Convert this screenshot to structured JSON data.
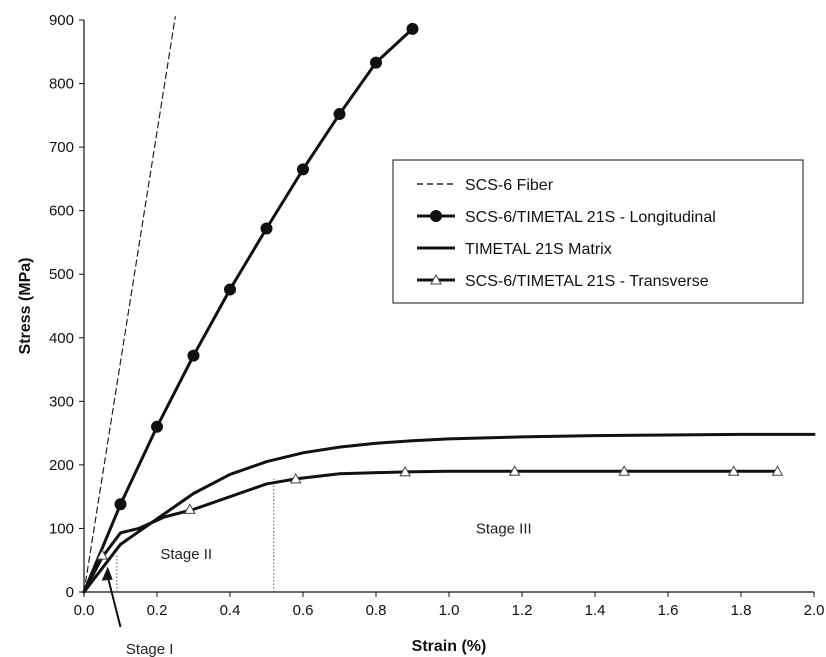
{
  "chart_data": {
    "type": "line",
    "xlabel": "Strain (%)",
    "ylabel": "Stress (MPa)",
    "xlim": [
      0,
      2.0
    ],
    "ylim": [
      0,
      900
    ],
    "xticks": [
      "0.0",
      "0.2",
      "0.4",
      "0.6",
      "0.8",
      "1.0",
      "1.2",
      "1.4",
      "1.6",
      "1.8",
      "2.0"
    ],
    "yticks": [
      "0",
      "100",
      "200",
      "300",
      "400",
      "500",
      "600",
      "700",
      "800",
      "900"
    ],
    "grid": false,
    "legend_position": "right",
    "series": [
      {
        "name": "SCS-6 Fiber",
        "style": "dashed",
        "color": "#222222",
        "x": [
          0,
          0.25
        ],
        "y": [
          0,
          905
        ]
      },
      {
        "name": "SCS-6/TIMETAL 21S - Longitudinal",
        "style": "solid",
        "marker": "circle",
        "color": "#111111",
        "x": [
          0,
          0.1,
          0.2,
          0.3,
          0.4,
          0.5,
          0.6,
          0.7,
          0.8,
          0.9
        ],
        "y": [
          0,
          138,
          260,
          372,
          476,
          572,
          665,
          752,
          833,
          886
        ],
        "marker_x": [
          0.1,
          0.2,
          0.3,
          0.4,
          0.5,
          0.6,
          0.7,
          0.8,
          0.9
        ],
        "marker_y": [
          138,
          260,
          372,
          476,
          572,
          665,
          752,
          833,
          886
        ]
      },
      {
        "name": "TIMETAL 21S Matrix",
        "style": "solid",
        "color": "#111111",
        "x": [
          0,
          0.1,
          0.2,
          0.3,
          0.4,
          0.5,
          0.6,
          0.7,
          0.8,
          0.9,
          1.0,
          1.2,
          1.4,
          1.6,
          1.8,
          2.0
        ],
        "y": [
          0,
          75,
          115,
          155,
          185,
          205,
          219,
          228,
          234,
          238,
          241,
          244,
          246,
          247,
          248,
          248
        ]
      },
      {
        "name": "SCS-6/TIMETAL 21S - Transverse",
        "style": "solid",
        "marker": "triangle",
        "color": "#111111",
        "x": [
          0,
          0.05,
          0.1,
          0.15,
          0.22,
          0.3,
          0.4,
          0.5,
          0.58,
          0.7,
          0.88,
          1.0,
          1.18,
          1.4,
          1.6,
          1.78,
          1.9
        ],
        "y": [
          0,
          55,
          93,
          100,
          118,
          130,
          150,
          170,
          178,
          186,
          189,
          190,
          190,
          190,
          190,
          190,
          190
        ],
        "marker_x": [
          0.05,
          0.29,
          0.58,
          0.88,
          1.18,
          1.48,
          1.78,
          1.9
        ],
        "marker_y": [
          58,
          130,
          178,
          189,
          190,
          190,
          190,
          190
        ]
      }
    ],
    "annotations": [
      {
        "text": "Stage I",
        "x": 0.18,
        "y": -90
      },
      {
        "text": "Stage II",
        "x": 0.28,
        "y": 60
      },
      {
        "text": "Stage III",
        "x": 1.15,
        "y": 100
      }
    ],
    "reference_lines": [
      {
        "x": 0.09,
        "y_top": 58
      },
      {
        "x": 0.52,
        "y_top": 178
      }
    ]
  }
}
